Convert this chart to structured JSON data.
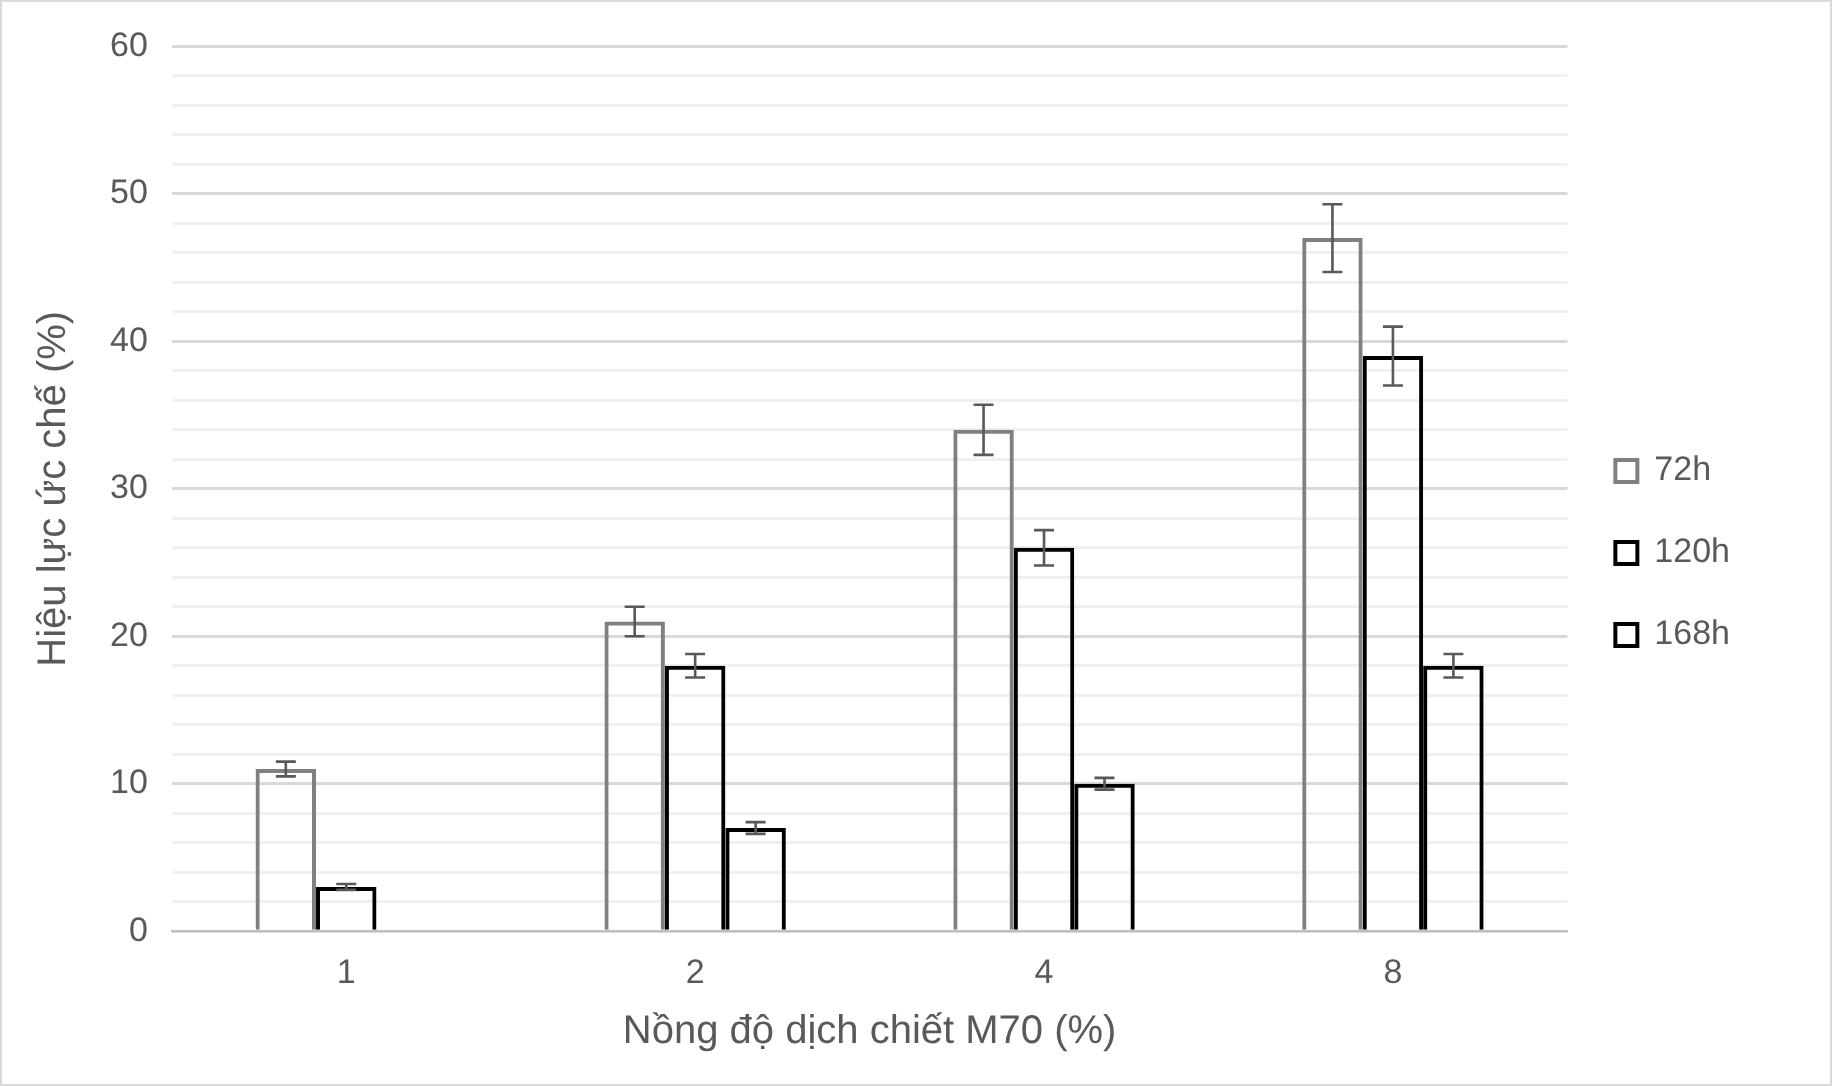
{
  "chart_data": {
    "type": "bar",
    "xlabel": "Nồng độ dịch chiết M70 (%)",
    "ylabel": "Hiệu lực ức chế (%)",
    "categories": [
      "1",
      "2",
      "4",
      "8"
    ],
    "series": [
      {
        "name": "72h",
        "color": "#808080",
        "values": [
          11,
          21,
          34,
          47
        ],
        "errors": [
          0.5,
          1,
          1.7,
          2.3
        ]
      },
      {
        "name": "120h",
        "color": "#000000",
        "values": [
          3,
          18,
          26,
          39
        ],
        "errors": [
          0.2,
          0.8,
          1.2,
          2
        ]
      },
      {
        "name": "168h",
        "color": "#000000",
        "values": [
          0,
          7,
          10,
          18
        ],
        "errors": [
          null,
          0.4,
          0.4,
          0.8
        ]
      }
    ],
    "ylim": [
      0,
      60
    ],
    "yticks": [
      0,
      {
        "value": 2,
        "label": null
      },
      {
        "value": 4,
        "label": null
      },
      {
        "value": 6,
        "label": null
      },
      {
        "value": 8,
        "label": null
      },
      10,
      {
        "value": 12,
        "label": null
      },
      {
        "value": 14,
        "label": null
      },
      {
        "value": 16,
        "label": null
      },
      {
        "value": 18,
        "label": null
      },
      20,
      {
        "value": 22,
        "label": null
      },
      {
        "value": 24,
        "label": null
      },
      {
        "value": 26,
        "label": null
      },
      {
        "value": 28,
        "label": null
      },
      30,
      {
        "value": 32,
        "label": null
      },
      {
        "value": 34,
        "label": null
      },
      {
        "value": 36,
        "label": null
      },
      {
        "value": 38,
        "label": null
      },
      40,
      {
        "value": 42,
        "label": null
      },
      {
        "value": 44,
        "label": null
      },
      {
        "value": 46,
        "label": null
      },
      {
        "value": 48,
        "label": null
      },
      50,
      {
        "value": 52,
        "label": null
      },
      {
        "value": 54,
        "label": null
      },
      {
        "value": 56,
        "label": null
      },
      {
        "value": 58,
        "label": null
      },
      60
    ],
    "grid": "y",
    "legend": "right"
  }
}
